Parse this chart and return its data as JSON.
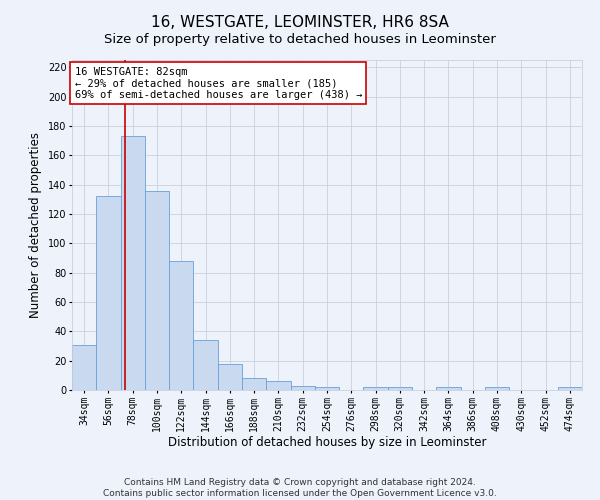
{
  "title": "16, WESTGATE, LEOMINSTER, HR6 8SA",
  "subtitle": "Size of property relative to detached houses in Leominster",
  "xlabel": "Distribution of detached houses by size in Leominster",
  "ylabel": "Number of detached properties",
  "bar_labels": [
    "34sqm",
    "56sqm",
    "78sqm",
    "100sqm",
    "122sqm",
    "144sqm",
    "166sqm",
    "188sqm",
    "210sqm",
    "232sqm",
    "254sqm",
    "276sqm",
    "298sqm",
    "320sqm",
    "342sqm",
    "364sqm",
    "386sqm",
    "408sqm",
    "430sqm",
    "452sqm",
    "474sqm"
  ],
  "bar_values": [
    31,
    132,
    173,
    136,
    88,
    34,
    18,
    8,
    6,
    3,
    2,
    0,
    2,
    2,
    0,
    2,
    0,
    2,
    0,
    0,
    2
  ],
  "bar_color": "#c9d9f0",
  "bar_edge_color": "#6a9fd8",
  "bar_width": 1.0,
  "ylim": [
    0,
    225
  ],
  "yticks": [
    0,
    20,
    40,
    60,
    80,
    100,
    120,
    140,
    160,
    180,
    200,
    220
  ],
  "red_line_color": "#cc0000",
  "annotation_box_text_line1": "16 WESTGATE: 82sqm",
  "annotation_box_text_line2": "← 29% of detached houses are smaller (185)",
  "annotation_box_text_line3": "69% of semi-detached houses are larger (438) →",
  "annotation_box_color": "#ffffff",
  "annotation_box_edgecolor": "#cc0000",
  "footer_line1": "Contains HM Land Registry data © Crown copyright and database right 2024.",
  "footer_line2": "Contains public sector information licensed under the Open Government Licence v3.0.",
  "background_color": "#edf2fb",
  "plot_background_color": "#edf2fb",
  "grid_color": "#c8d0e0",
  "title_fontsize": 11,
  "subtitle_fontsize": 9.5,
  "axis_label_fontsize": 8.5,
  "tick_fontsize": 7,
  "annotation_fontsize": 7.5,
  "footer_fontsize": 6.5
}
